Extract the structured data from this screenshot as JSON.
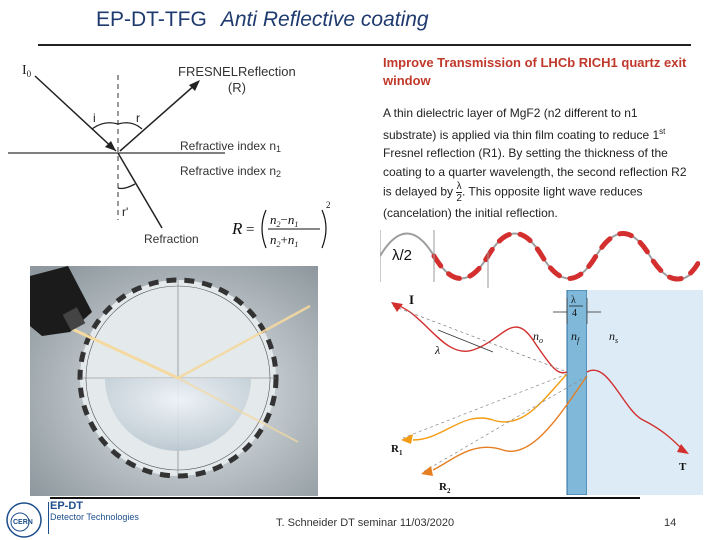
{
  "title": {
    "main": "EP-DT-TFG",
    "sub": "Anti Reflective coating"
  },
  "diagram": {
    "i0": "I",
    "i0_sub": "0",
    "fresnel": "FRESNELReflection",
    "fresnel_r": "(R)",
    "angle_i": "i",
    "angle_r": "r",
    "n1": "Refractive index n",
    "n1_sub": "1",
    "n2": "Refractive index n",
    "n2_sub": "2",
    "angle_r_prime": "r'",
    "refraction": "Refraction"
  },
  "formula": {
    "R": "R",
    "eq": "=",
    "n2": "n",
    "n2_sub": "2",
    "n1": "n",
    "n1_sub": "1",
    "minus": "−",
    "plus": "+",
    "exp": "2"
  },
  "improve_title": "Improve Transmission of LHCb RICH1 quartz exit window",
  "body": {
    "p1": "A thin dielectric layer of MgF2 (n2 different to n1 substrate) is applied via thin film coating to reduce 1",
    "p1_sup": "st",
    "p2": " Fresnel reflection (R1). By setting the thickness of the coating to a quarter wavelength, the second reflection R2 is delayed by ",
    "lambda_num": "λ",
    "lambda_den": "2",
    "p3": ". This opposite light wave reduces (cancelation) the initial reflection."
  },
  "wave_label": "λ/2",
  "thin_film": {
    "I": "I",
    "lambda_num": "λ",
    "lambda_den": "4",
    "lambda": "λ",
    "n0": "n",
    "n0_sub": "o",
    "nf": "n",
    "nf_sub": "f",
    "ns": "n",
    "ns_sub": "s",
    "R1": "R",
    "R1_sub": "1",
    "R2": "R",
    "R2_sub": "2",
    "T": "T"
  },
  "logos": {
    "cern": "CERN",
    "dept1": "EP-DT",
    "dept2": "Detector Technologies"
  },
  "footer": {
    "text": "T. Schneider DT seminar 11/03/2020",
    "page": "14"
  },
  "colors": {
    "title": "#1f3a6e",
    "accent": "#c0392b",
    "film": "#7fb8d9",
    "wave_dash": "#d32f2f",
    "wave": "#9e9e9e"
  }
}
